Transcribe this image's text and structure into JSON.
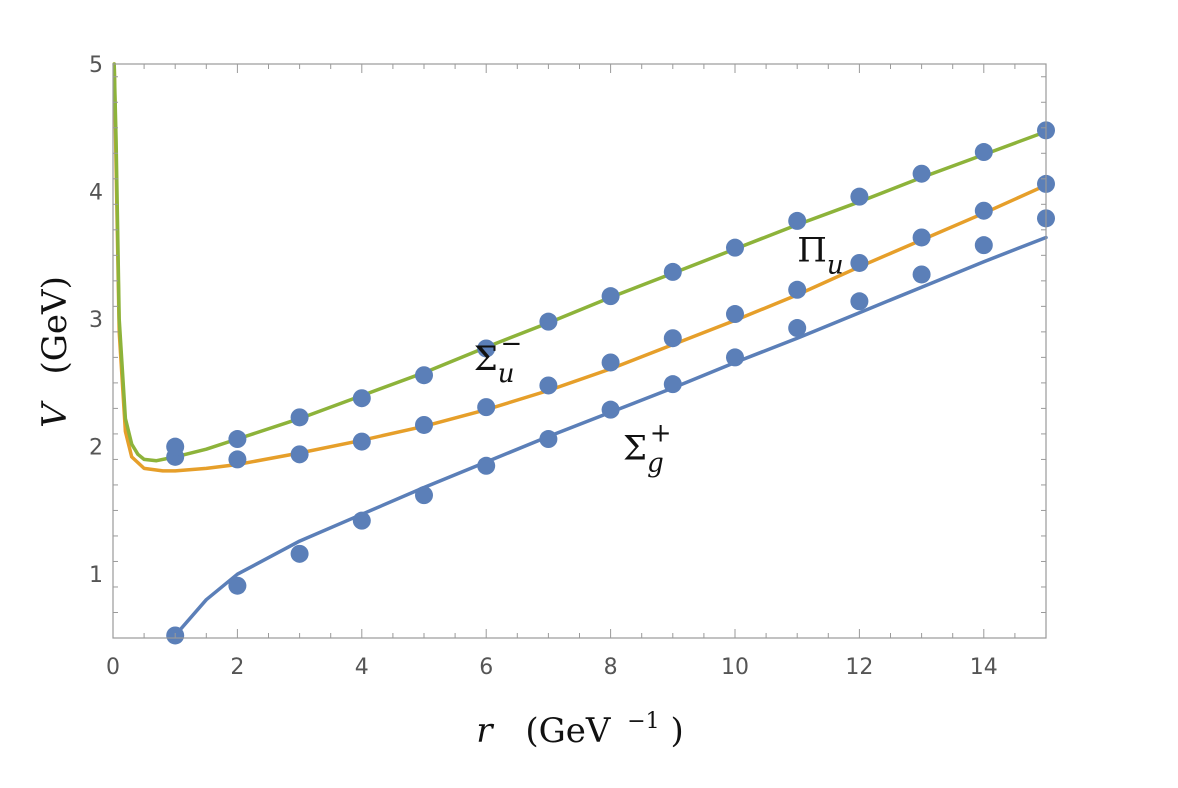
{
  "chart_data": {
    "type": "scatter",
    "title": "",
    "xlabel": {
      "var": "r",
      "unit_base": "(GeV",
      "unit_exp": "−1",
      "unit_close": ")"
    },
    "ylabel": {
      "var": "V",
      "unit": "(GeV)"
    },
    "xlim": [
      0,
      15
    ],
    "ylim": [
      0.5,
      5
    ],
    "x_ticks": [
      0,
      2,
      4,
      6,
      8,
      10,
      12,
      14
    ],
    "y_ticks": [
      1,
      2,
      3,
      4,
      5
    ],
    "grid": false,
    "colors": {
      "points": "#5b7fb8",
      "sigma_g_plus": "#5b7fb8",
      "pi_u": "#e69f2a",
      "sigma_u_minus": "#8db33a"
    },
    "series": [
      {
        "label_base": "Σ",
        "label_sup": "+",
        "label_sub": "g",
        "label_at": [
          8.2,
          1.9
        ],
        "color_key": "sigma_g_plus",
        "points_x": [
          1,
          2,
          3,
          4,
          5,
          6,
          7,
          8,
          9,
          10,
          11,
          12,
          13,
          14,
          15
        ],
        "points_y": [
          0.52,
          0.91,
          1.16,
          1.42,
          1.62,
          1.85,
          2.06,
          2.29,
          2.49,
          2.7,
          2.93,
          3.14,
          3.35,
          3.58,
          3.79
        ],
        "curve": {
          "x": [
            1.0,
            1.5,
            2.0,
            3.0,
            4.0,
            5.0,
            6.0,
            7.0,
            8.0,
            9.0,
            10.0,
            11.0,
            12.0,
            13.0,
            14.0,
            15.0
          ],
          "y": [
            0.52,
            0.8,
            1.0,
            1.26,
            1.47,
            1.68,
            1.88,
            2.08,
            2.27,
            2.46,
            2.66,
            2.85,
            3.05,
            3.25,
            3.45,
            3.64
          ]
        }
      },
      {
        "label_base": "Π",
        "label_sup": "",
        "label_sub": "u",
        "label_at": [
          11.0,
          3.45
        ],
        "color_key": "pi_u",
        "points_x": [
          1,
          2,
          3,
          4,
          5,
          6,
          7,
          8,
          9,
          10,
          11,
          12,
          13,
          14,
          15
        ],
        "points_y": [
          1.92,
          1.9,
          1.94,
          2.04,
          2.17,
          2.31,
          2.48,
          2.66,
          2.85,
          3.04,
          3.23,
          3.44,
          3.64,
          3.85,
          4.06
        ],
        "curve": {
          "x": [
            0.02,
            0.05,
            0.1,
            0.2,
            0.3,
            0.5,
            0.8,
            1.0,
            1.5,
            2.0,
            3.0,
            4.0,
            5.0,
            6.0,
            7.0,
            8.0,
            9.0,
            10.0,
            11.0,
            12.0,
            13.0,
            14.0,
            15.0
          ],
          "y": [
            5.0,
            4.2,
            2.9,
            2.12,
            1.92,
            1.83,
            1.81,
            1.81,
            1.83,
            1.86,
            1.95,
            2.05,
            2.16,
            2.29,
            2.44,
            2.61,
            2.8,
            2.99,
            3.19,
            3.41,
            3.62,
            3.83,
            4.05
          ]
        }
      },
      {
        "label_base": "Σ",
        "label_sup": "−",
        "label_sub": "u",
        "label_at": [
          5.8,
          2.6
        ],
        "color_key": "sigma_u_minus",
        "points_x": [
          1,
          2,
          3,
          4,
          5,
          6,
          7,
          8,
          9,
          10,
          11,
          12,
          13,
          14,
          15
        ],
        "points_y": [
          2.0,
          2.06,
          2.23,
          2.38,
          2.56,
          2.77,
          2.98,
          3.18,
          3.37,
          3.56,
          3.77,
          3.96,
          4.14,
          4.31,
          4.48
        ],
        "curve": {
          "x": [
            0.02,
            0.05,
            0.1,
            0.2,
            0.3,
            0.4,
            0.5,
            0.7,
            1.0,
            1.5,
            2.0,
            3.0,
            4.0,
            5.0,
            6.0,
            7.0,
            8.0,
            9.0,
            10.0,
            11.0,
            12.0,
            13.0,
            14.0,
            15.0
          ],
          "y": [
            5.0,
            4.4,
            3.0,
            2.22,
            2.02,
            1.94,
            1.9,
            1.89,
            1.92,
            1.98,
            2.06,
            2.22,
            2.4,
            2.58,
            2.78,
            2.97,
            3.17,
            3.36,
            3.55,
            3.74,
            3.92,
            4.11,
            4.29,
            4.47
          ]
        }
      }
    ]
  }
}
